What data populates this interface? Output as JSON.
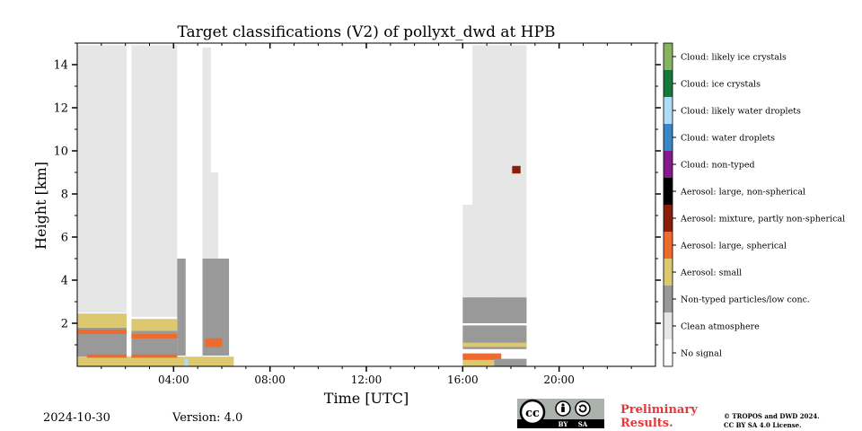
{
  "chart_data": {
    "type": "heatmap",
    "title": "Target classifications (V2) of pollyxt_dwd at HPB",
    "xlabel": "Time [UTC]",
    "ylabel": "Height [km]",
    "xlim": [
      0,
      24
    ],
    "ylim": [
      0,
      15
    ],
    "x_ticks": [
      {
        "value": 4,
        "label": "04:00"
      },
      {
        "value": 8,
        "label": "08:00"
      },
      {
        "value": 12,
        "label": "12:00"
      },
      {
        "value": 16,
        "label": "16:00"
      },
      {
        "value": 20,
        "label": "20:00"
      }
    ],
    "y_ticks": [
      {
        "value": 2,
        "label": "2"
      },
      {
        "value": 4,
        "label": "4"
      },
      {
        "value": 6,
        "label": "6"
      },
      {
        "value": 8,
        "label": "8"
      },
      {
        "value": 10,
        "label": "10"
      },
      {
        "value": 12,
        "label": "12"
      },
      {
        "value": 14,
        "label": "14"
      }
    ],
    "classes": [
      {
        "label": "No signal",
        "color": "#ffffff"
      },
      {
        "label": "Clean atmosphere",
        "color": "#e6e6e6"
      },
      {
        "label": "Non-typed particles/low conc.",
        "color": "#999999"
      },
      {
        "label": "Aerosol: small",
        "color": "#dcc86e"
      },
      {
        "label": "Aerosol: large, spherical",
        "color": "#ec6b2d"
      },
      {
        "label": "Aerosol: mixture, partly non-spherical",
        "color": "#8b1e0a"
      },
      {
        "label": "Aerosol: large, non-spherical",
        "color": "#000000"
      },
      {
        "label": "Cloud: non-typed",
        "color": "#86198b"
      },
      {
        "label": "Cloud: water droplets",
        "color": "#3a87c7"
      },
      {
        "label": "Cloud: likely water droplets",
        "color": "#aedcf7"
      },
      {
        "label": "Cloud: ice crystals",
        "color": "#157a3b"
      },
      {
        "label": "Cloud: likely ice crystals",
        "color": "#86b45e"
      }
    ],
    "regions": [
      {
        "class": "Clean atmosphere",
        "t0": 0.0,
        "t1": 2.05,
        "h0": 2.5,
        "h1": 14.9
      },
      {
        "class": "Clean atmosphere",
        "t0": 2.25,
        "t1": 4.15,
        "h0": 2.3,
        "h1": 14.9
      },
      {
        "class": "Clean atmosphere",
        "t0": 5.2,
        "t1": 5.55,
        "h0": 5.0,
        "h1": 14.8
      },
      {
        "class": "Clean atmosphere",
        "t0": 5.55,
        "t1": 5.85,
        "h0": 4.5,
        "h1": 9.0
      },
      {
        "class": "Non-typed particles/low conc.",
        "t0": 0.0,
        "t1": 2.05,
        "h0": 0.45,
        "h1": 1.8
      },
      {
        "class": "Non-typed particles/low conc.",
        "t0": 2.25,
        "t1": 4.15,
        "h0": 0.45,
        "h1": 1.65
      },
      {
        "class": "Non-typed particles/low conc.",
        "t0": 4.15,
        "t1": 4.5,
        "h0": 0.5,
        "h1": 5.0
      },
      {
        "class": "Non-typed particles/low conc.",
        "t0": 5.2,
        "t1": 6.3,
        "h0": 0.5,
        "h1": 5.0
      },
      {
        "class": "Aerosol: small",
        "t0": 0.0,
        "t1": 2.05,
        "h0": 1.8,
        "h1": 2.45
      },
      {
        "class": "Aerosol: small",
        "t0": 2.25,
        "t1": 4.15,
        "h0": 1.65,
        "h1": 2.2
      },
      {
        "class": "Aerosol: small",
        "t0": 0.0,
        "t1": 6.5,
        "h0": 0.0,
        "h1": 0.45
      },
      {
        "class": "Aerosol: large, spherical",
        "t0": 0.0,
        "t1": 2.05,
        "h0": 1.5,
        "h1": 1.7
      },
      {
        "class": "Aerosol: large, spherical",
        "t0": 2.25,
        "t1": 4.15,
        "h0": 1.3,
        "h1": 1.5
      },
      {
        "class": "Aerosol: large, spherical",
        "t0": 0.4,
        "t1": 2.05,
        "h0": 0.4,
        "h1": 0.55
      },
      {
        "class": "Aerosol: large, spherical",
        "t0": 2.25,
        "t1": 4.15,
        "h0": 0.4,
        "h1": 0.55
      },
      {
        "class": "Aerosol: large, spherical",
        "t0": 5.3,
        "t1": 6.0,
        "h0": 0.9,
        "h1": 1.3
      },
      {
        "class": "Cloud: likely water droplets",
        "t0": 4.45,
        "t1": 4.6,
        "h0": 0.0,
        "h1": 0.35
      },
      {
        "class": "Clean atmosphere",
        "t0": 16.0,
        "t1": 17.2,
        "h0": 3.2,
        "h1": 7.5
      },
      {
        "class": "Clean atmosphere",
        "t0": 16.4,
        "t1": 18.65,
        "h0": 3.2,
        "h1": 14.9
      },
      {
        "class": "Non-typed particles/low conc.",
        "t0": 16.0,
        "t1": 18.65,
        "h0": 2.0,
        "h1": 3.2
      },
      {
        "class": "Non-typed particles/low conc.",
        "t0": 16.0,
        "t1": 18.65,
        "h0": 0.8,
        "h1": 1.9
      },
      {
        "class": "Aerosol: small",
        "t0": 16.0,
        "t1": 18.65,
        "h0": 0.9,
        "h1": 1.1
      },
      {
        "class": "Aerosol: small",
        "t0": 16.0,
        "t1": 17.3,
        "h0": 0.0,
        "h1": 0.35
      },
      {
        "class": "Aerosol: large, spherical",
        "t0": 16.0,
        "t1": 17.6,
        "h0": 0.3,
        "h1": 0.6
      },
      {
        "class": "Non-typed particles/low conc.",
        "t0": 17.3,
        "t1": 18.65,
        "h0": 0.0,
        "h1": 0.35
      },
      {
        "class": "Aerosol: mixture, partly non-spherical",
        "t0": 18.05,
        "t1": 18.4,
        "h0": 8.95,
        "h1": 9.3
      }
    ]
  },
  "footer": {
    "date": "2024-10-30",
    "version": "Version: 4.0",
    "preliminary_line1": "Preliminary",
    "preliminary_line2": "Results.",
    "copyright_line1": "© TROPOS and DWD 2024.",
    "copyright_line2": "CC BY SA 4.0 License.",
    "license_badge": {
      "cc": "cc",
      "by": "BY",
      "sa": "SA"
    }
  }
}
